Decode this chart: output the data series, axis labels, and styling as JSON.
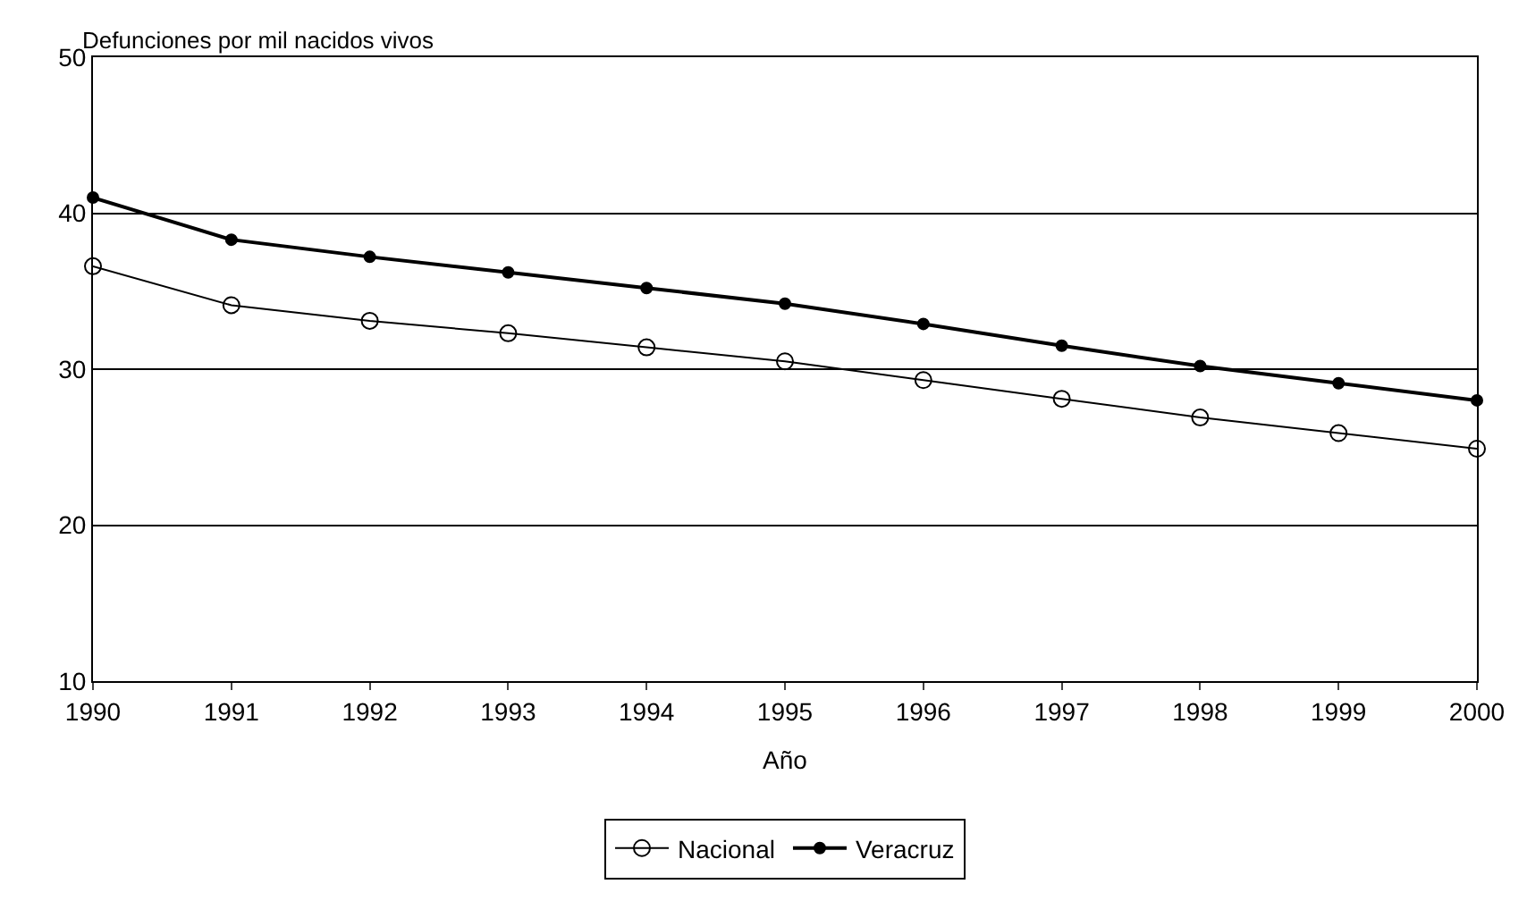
{
  "chart_data": {
    "type": "line",
    "ylabel": "Defunciones por mil nacidos vivos",
    "xlabel": "Año",
    "x": [
      1990,
      1991,
      1992,
      1993,
      1994,
      1995,
      1996,
      1997,
      1998,
      1999,
      2000
    ],
    "series": [
      {
        "name": "Nacional",
        "color": "#000000",
        "marker": "circle-open",
        "values": [
          36.6,
          34.1,
          33.1,
          32.3,
          31.4,
          30.5,
          29.3,
          28.1,
          26.9,
          25.9,
          24.9
        ]
      },
      {
        "name": "Veracruz",
        "color": "#000000",
        "marker": "circle",
        "values": [
          41.0,
          38.3,
          37.2,
          36.2,
          35.2,
          34.2,
          32.9,
          31.5,
          30.2,
          29.1,
          28.0
        ]
      }
    ],
    "xlim": [
      1990,
      2000
    ],
    "xticks": [
      1990,
      1991,
      1992,
      1993,
      1994,
      1995,
      1996,
      1997,
      1998,
      1999,
      2000
    ],
    "ylim": [
      10,
      50
    ],
    "yticks": [
      10,
      20,
      30,
      40,
      50
    ],
    "grid": "y",
    "legend": "bottom",
    "line_style": "solid"
  }
}
